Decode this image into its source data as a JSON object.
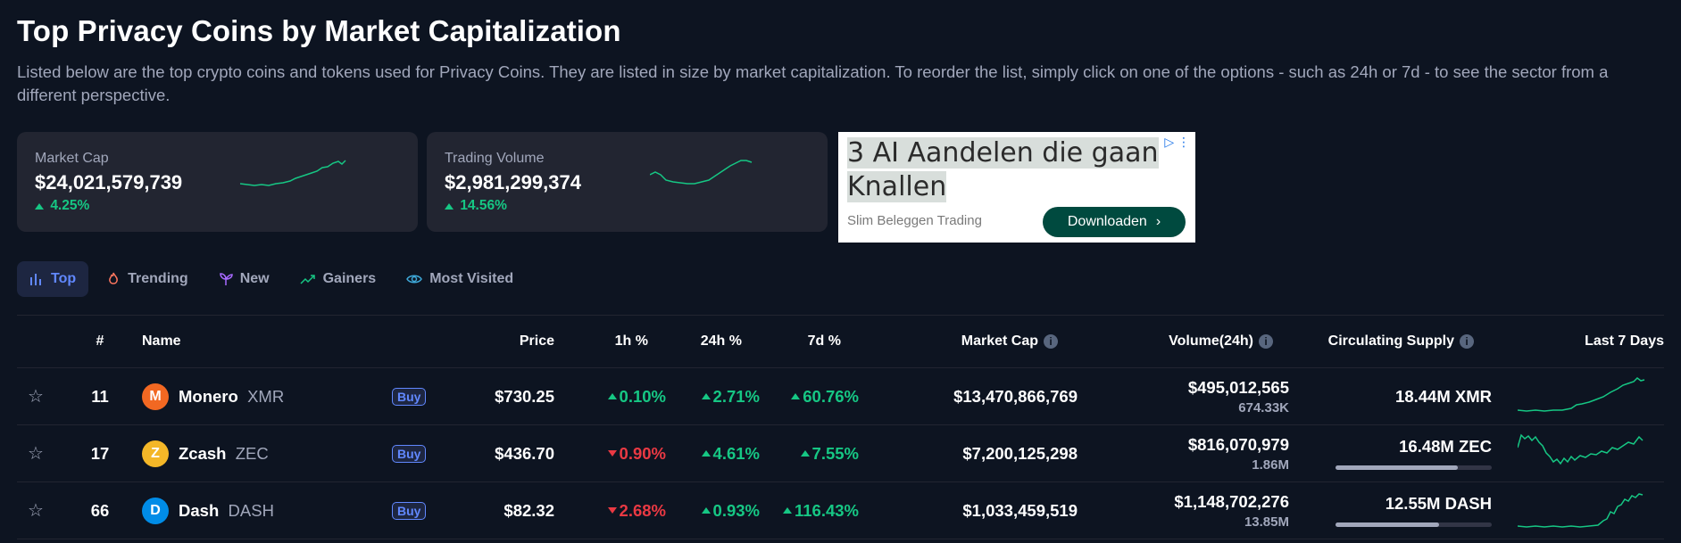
{
  "page": {
    "title": "Top Privacy Coins by Market Capitalization",
    "description": "Listed below are the top crypto coins and tokens used for Privacy Coins. They are listed in size by market capitalization. To reorder the list, simply click on one of the options - such as 24h or 7d - to see the sector from a different perspective."
  },
  "cards": [
    {
      "label": "Market Cap",
      "value": "$24,021,579,739",
      "change": "4.25%",
      "direction": "up"
    },
    {
      "label": "Trading Volume",
      "value": "$2,981,299,374",
      "change": "14.56%",
      "direction": "up"
    }
  ],
  "ad": {
    "headline_line1": "3 AI Aandelen die gaan",
    "headline_line2": "Knallen",
    "source": "Slim Beleggen Trading",
    "button": "Downloaden"
  },
  "tabs": [
    {
      "label": "Top",
      "icon": "bar-chart-icon",
      "active": true
    },
    {
      "label": "Trending",
      "icon": "flame-icon",
      "active": false
    },
    {
      "label": "New",
      "icon": "sprout-icon",
      "active": false
    },
    {
      "label": "Gainers",
      "icon": "trend-up-icon",
      "active": false
    },
    {
      "label": "Most Visited",
      "icon": "eye-icon",
      "active": false
    }
  ],
  "table": {
    "headers": {
      "rank": "#",
      "name": "Name",
      "price": "Price",
      "h1": "1h %",
      "h24": "24h %",
      "d7": "7d %",
      "market_cap": "Market Cap",
      "volume": "Volume(24h)",
      "supply": "Circulating Supply",
      "last7": "Last 7 Days"
    },
    "rows": [
      {
        "rank": "11",
        "name": "Monero",
        "symbol": "XMR",
        "buy": "Buy",
        "price": "$730.25",
        "h1": "0.10%",
        "h1_dir": "up",
        "h24": "2.71%",
        "h24_dir": "up",
        "d7": "60.76%",
        "d7_dir": "up",
        "market_cap": "$13,470,866,769",
        "volume": "$495,012,565",
        "volume_sub": "674.33K",
        "supply": "18.44M XMR",
        "supply_fraction": null,
        "icon_color": "#f26822"
      },
      {
        "rank": "17",
        "name": "Zcash",
        "symbol": "ZEC",
        "buy": "Buy",
        "price": "$436.70",
        "h1": "0.90%",
        "h1_dir": "down",
        "h24": "4.61%",
        "h24_dir": "up",
        "d7": "7.55%",
        "d7_dir": "up",
        "market_cap": "$7,200,125,298",
        "volume": "$816,070,979",
        "volume_sub": "1.86M",
        "supply": "16.48M ZEC",
        "supply_fraction": 0.78,
        "icon_color": "#f4b728"
      },
      {
        "rank": "66",
        "name": "Dash",
        "symbol": "DASH",
        "buy": "Buy",
        "price": "$82.32",
        "h1": "2.68%",
        "h1_dir": "down",
        "h24": "0.93%",
        "h24_dir": "up",
        "d7": "116.43%",
        "d7_dir": "up",
        "market_cap": "$1,033,459,519",
        "volume": "$1,148,702,276",
        "volume_sub": "13.85M",
        "supply": "12.55M DASH",
        "supply_fraction": 0.66,
        "icon_color": "#008ce7"
      }
    ]
  },
  "colors": {
    "background": "#0d1421",
    "up": "#16c784",
    "down": "#ea3943",
    "accent": "#6188ff"
  }
}
